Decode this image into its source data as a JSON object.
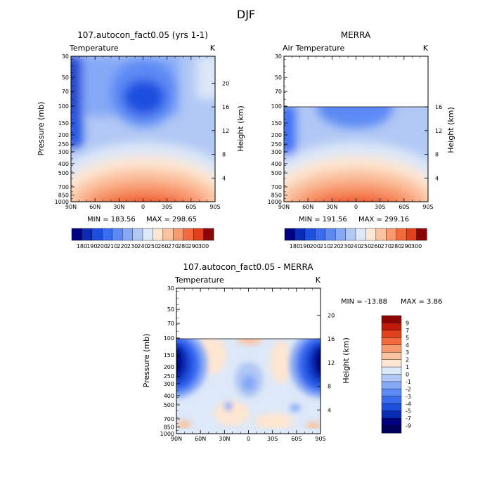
{
  "figure": {
    "title": "DJF",
    "units": "K"
  },
  "chart_data": [
    {
      "type": "heatmap",
      "panel": "model",
      "title": "107.autocon_fact0.05 (yrs 1-1)",
      "variable": "Temperature",
      "units": "K",
      "xlabel": "",
      "ylabel": "Pressure (mb)",
      "ylabel_right": "Height (km)",
      "x_ticks": [
        "90N",
        "60N",
        "30N",
        "0",
        "30S",
        "60S",
        "90S"
      ],
      "y_ticks": [
        30,
        50,
        70,
        100,
        150,
        200,
        250,
        300,
        400,
        500,
        700,
        850,
        1000
      ],
      "y2_ticks": [
        20,
        16,
        12,
        8,
        4
      ],
      "xlim": [
        90,
        -90
      ],
      "ylim": [
        1000,
        30
      ],
      "data_top": 30,
      "min_label": "MIN = 183.56",
      "max_label": "MAX = 298.65",
      "min": 183.56,
      "max": 298.65,
      "colorbar": {
        "orientation": "horizontal",
        "tick_labels": [
          "180",
          "190",
          "200",
          "210",
          "220",
          "230",
          "240",
          "250",
          "260",
          "270",
          "280",
          "290",
          "300"
        ],
        "levels": [
          180,
          190,
          200,
          210,
          220,
          230,
          240,
          250,
          260,
          270,
          280,
          290,
          300
        ],
        "colors": [
          "#000080",
          "#0a2cb4",
          "#1c4fe0",
          "#3a6cf2",
          "#5b8af5",
          "#86a9f6",
          "#b1c8f5",
          "#dde8f8",
          "#fde6d2",
          "#fbc2a0",
          "#f89a70",
          "#f26a3e",
          "#e0401c",
          "#8c0505"
        ]
      }
    },
    {
      "type": "heatmap",
      "panel": "obs",
      "title": "MERRA",
      "variable": "Air Temperature",
      "units": "K",
      "xlabel": "",
      "ylabel": "",
      "ylabel_right": "Height (km)",
      "x_ticks": [
        "90N",
        "60N",
        "30N",
        "0",
        "30S",
        "60S",
        "90S"
      ],
      "y_ticks": [
        30,
        50,
        70,
        100,
        150,
        200,
        250,
        300,
        400,
        500,
        700,
        850,
        1000
      ],
      "y2_ticks": [
        16,
        12,
        8,
        4
      ],
      "xlim": [
        90,
        -90
      ],
      "ylim": [
        1000,
        30
      ],
      "data_top": 100,
      "min_label": "MIN = 191.56",
      "max_label": "MAX = 299.16",
      "min": 191.56,
      "max": 299.16,
      "colorbar": {
        "orientation": "horizontal",
        "tick_labels": [
          "180",
          "190",
          "200",
          "210",
          "220",
          "230",
          "240",
          "250",
          "260",
          "270",
          "280",
          "290",
          "300"
        ],
        "levels": [
          180,
          190,
          200,
          210,
          220,
          230,
          240,
          250,
          260,
          270,
          280,
          290,
          300
        ],
        "colors": [
          "#000080",
          "#0a2cb4",
          "#1c4fe0",
          "#3a6cf2",
          "#5b8af5",
          "#86a9f6",
          "#b1c8f5",
          "#dde8f8",
          "#fde6d2",
          "#fbc2a0",
          "#f89a70",
          "#f26a3e",
          "#e0401c",
          "#8c0505"
        ]
      }
    },
    {
      "type": "heatmap",
      "panel": "diff",
      "title": "107.autocon_fact0.05 - MERRA",
      "variable": "Temperature",
      "units": "K",
      "xlabel": "",
      "ylabel": "Pressure (mb)",
      "ylabel_right": "Height (km)",
      "x_ticks": [
        "90N",
        "60N",
        "30N",
        "0",
        "30S",
        "60S",
        "90S"
      ],
      "y_ticks": [
        30,
        50,
        70,
        100,
        150,
        200,
        250,
        300,
        400,
        500,
        700,
        850,
        1000
      ],
      "y2_ticks": [
        20,
        16,
        12,
        8,
        4
      ],
      "xlim": [
        90,
        -90
      ],
      "ylim": [
        1000,
        30
      ],
      "data_top": 100,
      "min_label": "MIN = -13.88",
      "max_label": "MAX =   3.86",
      "min": -13.88,
      "max": 3.86,
      "colorbar": {
        "orientation": "vertical",
        "tick_labels": [
          "9",
          "7",
          "5",
          "4",
          "3",
          "2",
          "1",
          "0",
          "-1",
          "-2",
          "-3",
          "-4",
          "-5",
          "-7",
          "-9"
        ],
        "levels": [
          9,
          7,
          5,
          4,
          3,
          2,
          1,
          0,
          -1,
          -2,
          -3,
          -4,
          -5,
          -7,
          -9
        ],
        "colors": [
          "#8c0505",
          "#c01a0a",
          "#e0401c",
          "#f26a3e",
          "#f89a70",
          "#fbc2a0",
          "#fde6d2",
          "#dde8f8",
          "#b1c8f5",
          "#86a9f6",
          "#5b8af5",
          "#3a6cf2",
          "#1c4fe0",
          "#0a2cb4",
          "#000080",
          "#00005c"
        ]
      }
    }
  ]
}
